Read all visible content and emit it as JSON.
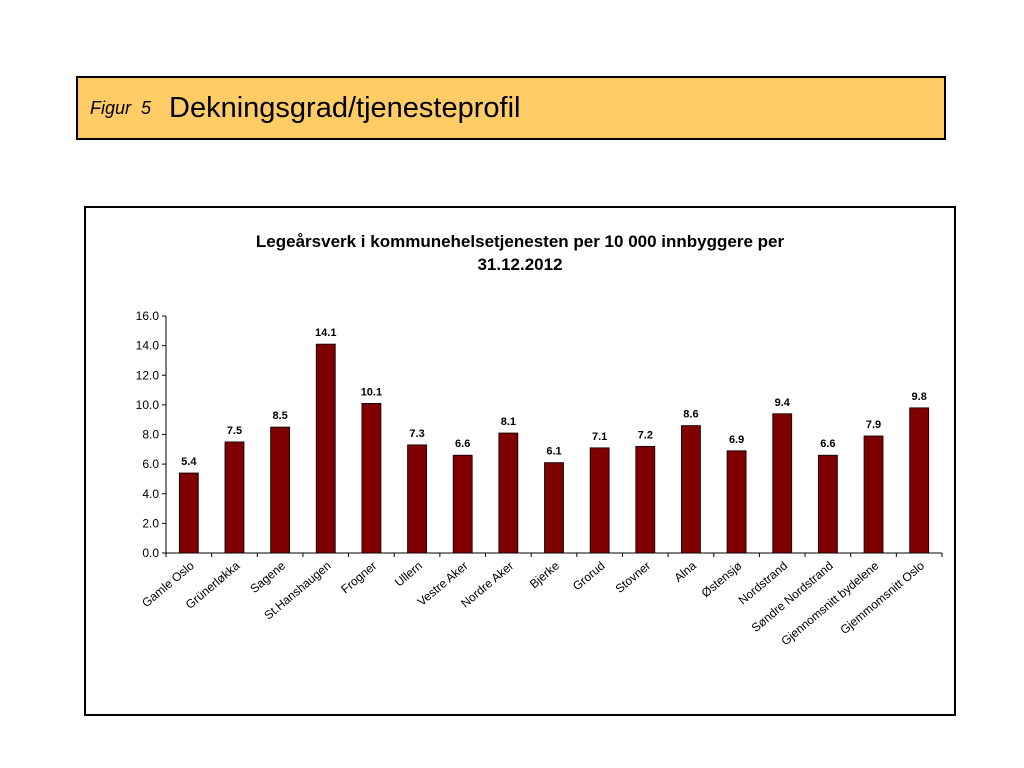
{
  "header": {
    "figure_label": "Figur",
    "figure_number": "5",
    "title": "Dekningsgrad/tjenesteprofil"
  },
  "chart_data": {
    "type": "bar",
    "title_lines": [
      "Legeårsverk i kommunehelsetjenesten per 10 000 innbyggere per",
      "31.12.2012"
    ],
    "categories": [
      "Gamle Oslo",
      "Grünerløkka",
      "Sagene",
      "St.Hanshaugen",
      "Frogner",
      "Ullern",
      "Vestre Aker",
      "Nordre Aker",
      "Bjerke",
      "Grorud",
      "Stovner",
      "Alna",
      "Østensjø",
      "Nordstrand",
      "Søndre Nordstrand",
      "Gjennomsnitt bydelene",
      "Gjemmomsnitt Oslo"
    ],
    "values": [
      5.4,
      7.5,
      8.5,
      14.1,
      10.1,
      7.3,
      6.6,
      8.1,
      6.1,
      7.1,
      7.2,
      8.6,
      6.9,
      9.4,
      6.6,
      7.9,
      9.8
    ],
    "value_labels": [
      "5.4",
      "7.5",
      "8.5",
      "14.1",
      "10.1",
      "7.3",
      "6.6",
      "8.1",
      "6.1",
      "7.1",
      "7.2",
      "8.6",
      "6.9",
      "9.4",
      "6.6",
      "7.9",
      "9.8"
    ],
    "y_ticks": [
      "0.0",
      "2.0",
      "4.0",
      "6.0",
      "8.0",
      "10.0",
      "12.0",
      "14.0",
      "16.0"
    ],
    "ylim": [
      0,
      16
    ],
    "bar_color": "#7f0000",
    "grid": false,
    "legend": "none"
  }
}
